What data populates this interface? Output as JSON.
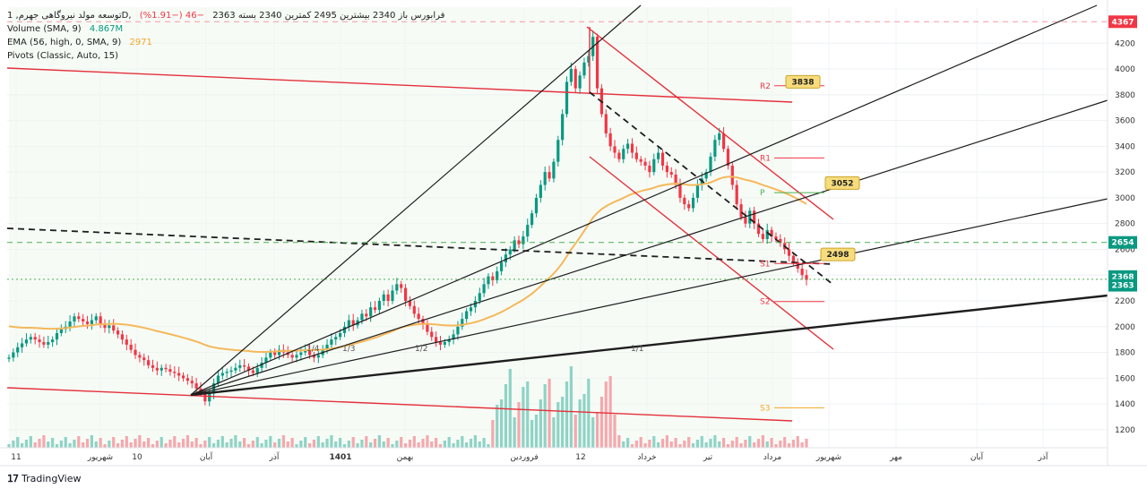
{
  "legend": {
    "title": "توسعه مولد نیروگاهی جهرم, 1D, فرابورس",
    "ohlc": "باز 2340  بیشترین 2495  کمترین 2340  بسته 2363",
    "change": "−46 (−1.91%)",
    "volume_label": "Volume (SMA, 9)",
    "volume_value": "4.867M",
    "ema_label": "EMA (56, high, 0, SMA, 9)",
    "ema_value": "2971",
    "pivots_label": "Pivots (Classic, Auto, 15)"
  },
  "footer": {
    "brand": "TradingView"
  },
  "colors": {
    "up": "#089981",
    "down": "#f23645",
    "ema": "#f5b85a",
    "red_line": "#e5303b",
    "pivot_green": "#4caf50",
    "pivot_red": "#f23645",
    "label_bg": "#f7dc7c"
  },
  "chart_data": {
    "type": "candlestick",
    "y_ticks": [
      1200,
      1400,
      1600,
      1800,
      2000,
      2200,
      2400,
      2600,
      2800,
      3000,
      3200,
      3400,
      3600,
      3800,
      4000,
      4200
    ],
    "ylim": [
      1060,
      4480
    ],
    "x_ticks": [
      "11",
      "شهریور",
      "10",
      "آبان",
      "آذر",
      "1401",
      "بهمن",
      "فروردین",
      "12",
      "خرداد",
      "تیر",
      "مرداد",
      "شهریور",
      "مهر",
      "آبان",
      "آذر"
    ],
    "price_labels": [
      {
        "value": 4367,
        "text": "4367",
        "color": "#f23645"
      },
      {
        "value": 2654,
        "text": "2654",
        "color": "#089981"
      },
      {
        "value": 2368,
        "text": "2368",
        "color": "#089981"
      },
      {
        "value": 2363,
        "text": "2363",
        "color": "#089981"
      }
    ],
    "callouts": [
      {
        "text": "3838",
        "price": 3838
      },
      {
        "text": "3052",
        "price": 3052
      },
      {
        "text": "2498",
        "price": 2498
      }
    ],
    "pivots": [
      {
        "label": "R2",
        "value": 3870
      },
      {
        "label": "R1",
        "value": 3310
      },
      {
        "label": "P",
        "value": 3040
      },
      {
        "label": "S1",
        "value": 2490
      },
      {
        "label": "S2",
        "value": 2195
      },
      {
        "label": "S3",
        "value": 1370
      }
    ],
    "fan_labels": [
      "1/4",
      "1/3",
      "1/2",
      "1/1"
    ],
    "horizontal_levels": [
      4367,
      2654,
      2368
    ],
    "close": [
      1760,
      1800,
      1840,
      1870,
      1900,
      1920,
      1900,
      1880,
      1860,
      1880,
      1900,
      1950,
      1980,
      2000,
      2040,
      2080,
      2060,
      2040,
      2020,
      2050,
      2080,
      2020,
      1990,
      2010,
      1970,
      1940,
      1900,
      1860,
      1820,
      1780,
      1760,
      1740,
      1700,
      1680,
      1660,
      1680,
      1670,
      1650,
      1640,
      1620,
      1600,
      1580,
      1560,
      1520,
      1480,
      1420,
      1480,
      1560,
      1620,
      1640,
      1650,
      1660,
      1680,
      1700,
      1690,
      1660,
      1640,
      1680,
      1720,
      1760,
      1800,
      1780,
      1820,
      1800,
      1780,
      1760,
      1780,
      1800,
      1820,
      1780,
      1760,
      1780,
      1820,
      1860,
      1900,
      1920,
      1950,
      2000,
      2050,
      2010,
      2050,
      2100,
      2080,
      2150,
      2130,
      2200,
      2250,
      2200,
      2280,
      2330,
      2300,
      2200,
      2160,
      2100,
      2060,
      2020,
      1960,
      1920,
      1880,
      1860,
      1880,
      1900,
      1940,
      2000,
      2060,
      2120,
      2150,
      2200,
      2260,
      2330,
      2390,
      2360,
      2430,
      2500,
      2560,
      2600,
      2670,
      2640,
      2700,
      2790,
      2880,
      3000,
      3100,
      3200,
      3150,
      3280,
      3450,
      3650,
      3900,
      4000,
      3850,
      3950,
      4050,
      4100,
      4250,
      3850,
      3650,
      3500,
      3400,
      3350,
      3300,
      3380,
      3420,
      3350,
      3300,
      3280,
      3250,
      3200,
      3300,
      3350,
      3250,
      3200,
      3180,
      3100,
      3000,
      2950,
      2920,
      3000,
      3100,
      3150,
      3200,
      3320,
      3450,
      3500,
      3380,
      3250,
      3100,
      2950,
      2850,
      2800,
      2900,
      2800,
      2720,
      2680,
      2750,
      2700,
      2680,
      2650,
      2600,
      2550,
      2500,
      2450,
      2400,
      2363
    ]
  }
}
